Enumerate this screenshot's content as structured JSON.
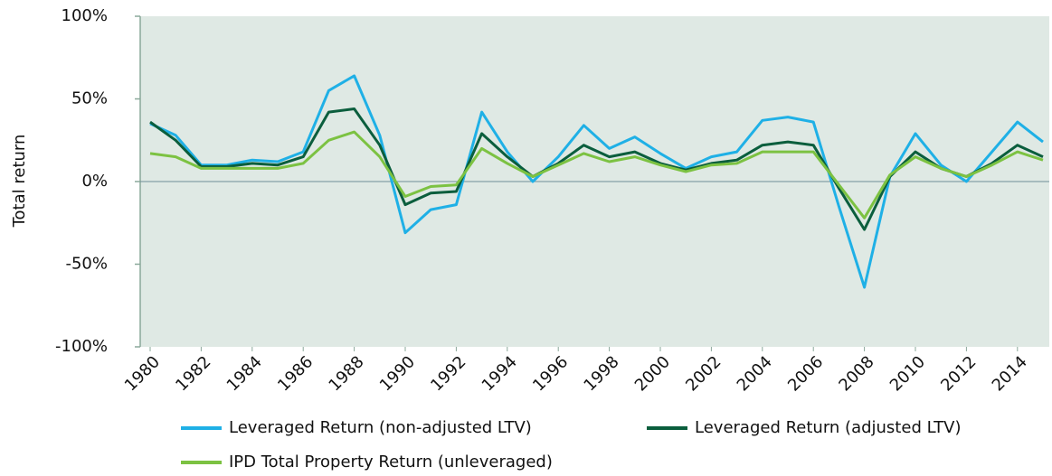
{
  "chart_data": {
    "type": "line",
    "y_label": "Total return",
    "x": [
      1980,
      1981,
      1982,
      1983,
      1984,
      1985,
      1986,
      1987,
      1988,
      1989,
      1990,
      1991,
      1992,
      1993,
      1994,
      1995,
      1996,
      1997,
      1998,
      1999,
      2000,
      2001,
      2002,
      2003,
      2004,
      2005,
      2006,
      2007,
      2008,
      2009,
      2010,
      2011,
      2012,
      2013,
      2014,
      2015
    ],
    "series": [
      {
        "name": "Leveraged Return (non-adjusted LTV)",
        "color": "#1fb0e6",
        "values": [
          35,
          28,
          10,
          10,
          13,
          12,
          18,
          55,
          64,
          28,
          -31,
          -17,
          -14,
          42,
          18,
          0,
          15,
          34,
          20,
          27,
          17,
          8,
          15,
          18,
          37,
          39,
          36,
          -15,
          -64,
          3,
          29,
          10,
          0,
          18,
          36,
          24
        ]
      },
      {
        "name": "Leveraged Return (adjusted LTV)",
        "color": "#0b5e3d",
        "values": [
          36,
          25,
          9,
          9,
          11,
          10,
          15,
          42,
          44,
          22,
          -14,
          -7,
          -6,
          29,
          15,
          3,
          11,
          22,
          15,
          18,
          11,
          7,
          11,
          13,
          22,
          24,
          22,
          -4,
          -29,
          3,
          18,
          8,
          3,
          11,
          22,
          15
        ]
      },
      {
        "name": "IPD Total Property Return (unleveraged)",
        "color": "#7cc242",
        "values": [
          17,
          15,
          8,
          8,
          8,
          8,
          11,
          25,
          30,
          15,
          -9,
          -3,
          -2,
          20,
          11,
          3,
          10,
          17,
          12,
          15,
          10,
          6,
          10,
          11,
          18,
          18,
          18,
          -2,
          -22,
          4,
          15,
          8,
          3,
          10,
          18,
          13
        ]
      }
    ],
    "xlim": [
      1980,
      2015
    ],
    "xticks": [
      1980,
      1982,
      1984,
      1986,
      1988,
      1990,
      1992,
      1994,
      1996,
      1998,
      2000,
      2002,
      2004,
      2006,
      2008,
      2010,
      2012,
      2014
    ],
    "ylim": [
      -100,
      100
    ],
    "yticks": [
      {
        "value": -100,
        "label": "-100%"
      },
      {
        "value": -50,
        "label": "-50%"
      },
      {
        "value": 0,
        "label": "0%"
      },
      {
        "value": 50,
        "label": "50%"
      },
      {
        "value": 100,
        "label": "100%"
      }
    ],
    "grid": false,
    "legend": "bottom"
  }
}
